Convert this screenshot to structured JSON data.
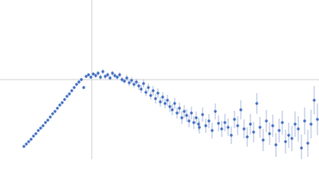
{
  "chart_data": {
    "type": "scatter",
    "x": [
      30,
      33,
      36,
      39,
      42,
      45,
      48,
      51,
      54,
      57,
      60,
      63,
      66,
      69,
      72,
      75,
      78,
      81,
      84,
      87,
      90,
      93,
      96,
      99,
      102,
      105,
      108,
      111,
      114,
      117,
      120,
      123,
      126,
      129,
      132,
      135,
      138,
      141,
      144,
      147,
      150,
      153,
      156,
      159,
      162,
      165,
      168,
      171,
      174,
      177,
      180,
      183,
      186,
      189,
      192,
      195,
      198,
      201,
      204,
      207,
      210,
      213,
      216,
      219,
      222,
      225,
      228,
      231,
      234,
      237,
      240,
      243,
      246,
      249,
      250,
      254,
      258,
      262,
      266,
      270,
      274,
      278,
      282,
      286,
      290,
      294,
      298,
      302,
      306,
      310,
      314,
      318,
      322,
      326,
      330,
      334,
      338,
      342,
      346,
      350,
      354,
      358,
      362,
      366,
      370,
      374,
      378,
      382,
      386,
      390,
      394,
      398
    ],
    "series": [
      {
        "color": "#3d6bbf",
        "error_color": "#a9b8de",
        "values": [
          16,
          19,
          22,
          25,
          29,
          32,
          36,
          39,
          42,
          46,
          49,
          53,
          57,
          60,
          64,
          68,
          71,
          75,
          79,
          82,
          86,
          90,
          94,
          97,
          100,
          90,
          104,
          106,
          103,
          107,
          105,
          108,
          103,
          110,
          104,
          106,
          102,
          108,
          105,
          103,
          106,
          100,
          98,
          102,
          96,
          99,
          94,
          97,
          92,
          88,
          95,
          84,
          90,
          80,
          86,
          76,
          83,
          72,
          78,
          70,
          74,
          66,
          62,
          70,
          58,
          64,
          52,
          60,
          55,
          48,
          58,
          46,
          52,
          44,
          40,
          56,
          42,
          48,
          36,
          60,
          45,
          38,
          46,
          40,
          30,
          50,
          42,
          62,
          38,
          28,
          44,
          34,
          70,
          40,
          24,
          48,
          32,
          42,
          18,
          36,
          46,
          22,
          30,
          26,
          44,
          38,
          14,
          48,
          20,
          44,
          74,
          50
        ],
        "errors": [
          1,
          1,
          1,
          1,
          1,
          1,
          1,
          1,
          1,
          1,
          1,
          1,
          1,
          1,
          1,
          1,
          1,
          1,
          1,
          2,
          2,
          2,
          2,
          2,
          2,
          2,
          2,
          2,
          2,
          2,
          3,
          3,
          3,
          3,
          3,
          3,
          3,
          3,
          3,
          3,
          3,
          3,
          3,
          4,
          4,
          4,
          4,
          4,
          5,
          5,
          5,
          5,
          5,
          5,
          6,
          6,
          6,
          6,
          6,
          6,
          7,
          7,
          7,
          7,
          7,
          7,
          8,
          8,
          8,
          8,
          8,
          8,
          8,
          8,
          8,
          9,
          9,
          9,
          10,
          10,
          10,
          10,
          11,
          11,
          11,
          11,
          12,
          12,
          12,
          12,
          13,
          13,
          13,
          13,
          14,
          14,
          14,
          14,
          15,
          15,
          15,
          15,
          16,
          16,
          16,
          16,
          17,
          17,
          17,
          18,
          18,
          20
        ]
      }
    ],
    "xlim": [
      0,
      400
    ],
    "ylim": [
      0,
      200
    ],
    "ref_lines": {
      "x": 115,
      "y": 100
    }
  }
}
